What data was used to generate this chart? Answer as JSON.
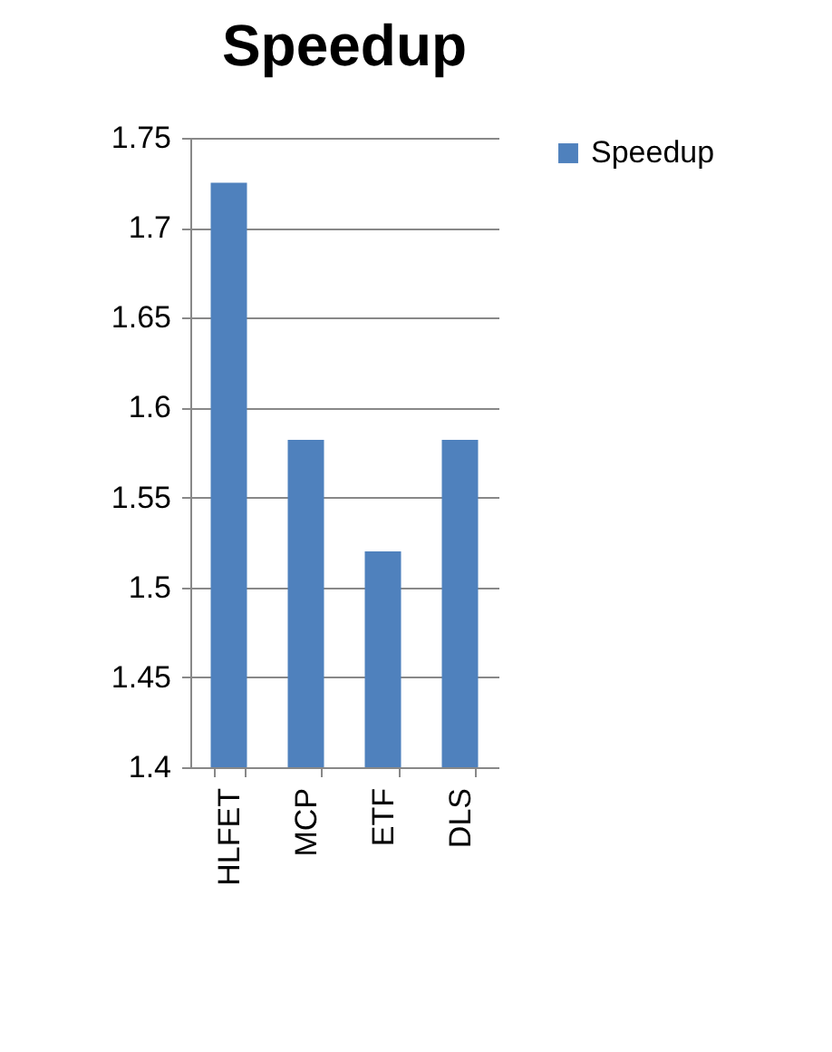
{
  "chart_data": {
    "type": "bar",
    "title": "Speedup",
    "categories": [
      "HLFET",
      "MCP",
      "ETF",
      "DLS"
    ],
    "series": [
      {
        "name": "Speedup",
        "color": "#4f81bd",
        "values": [
          1.725,
          1.582,
          1.52,
          1.582
        ]
      }
    ],
    "ylim": [
      1.4,
      1.75
    ],
    "yticks": [
      1.4,
      1.45,
      1.5,
      1.55,
      1.6,
      1.65,
      1.7,
      1.75
    ],
    "grid": "y",
    "legend": "right"
  }
}
